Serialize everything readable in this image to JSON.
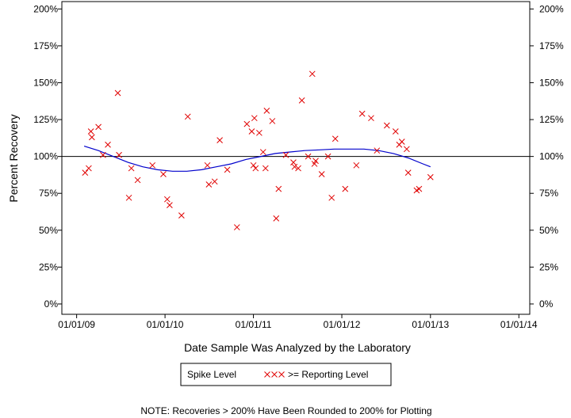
{
  "chart_data": {
    "type": "scatter",
    "xlabel": "Date Sample Was Analyzed by the Laboratory",
    "ylabel": "Percent Recovery",
    "x_ticks": [
      "01/01/09",
      "01/01/10",
      "01/01/11",
      "01/01/12",
      "01/01/13",
      "01/01/14"
    ],
    "y_ticks": [
      "0%",
      "25%",
      "50%",
      "75%",
      "100%",
      "125%",
      "150%",
      "175%",
      "200%"
    ],
    "xlim": [
      "2008-11-01",
      "2014-02-15"
    ],
    "ylim": [
      -7,
      205
    ],
    "reference_line": 100,
    "legend": {
      "label": "Spike Level",
      "marker_text": "xxx",
      "marker_label": ">= Reporting Level"
    },
    "note": "NOTE: Recoveries > 200% Have Been Rounded to 200% for Plotting",
    "colors": {
      "points": "#e00000",
      "trend": "#0000cc",
      "reference": "#000000"
    },
    "series": [
      {
        "name": ">= Reporting Level",
        "marker": "x",
        "points": [
          {
            "x": "2009-02-05",
            "y": 89
          },
          {
            "x": "2009-02-20",
            "y": 92
          },
          {
            "x": "2009-03-01",
            "y": 117
          },
          {
            "x": "2009-03-05",
            "y": 113
          },
          {
            "x": "2009-04-01",
            "y": 120
          },
          {
            "x": "2009-04-20",
            "y": 101
          },
          {
            "x": "2009-05-10",
            "y": 108
          },
          {
            "x": "2009-06-20",
            "y": 143
          },
          {
            "x": "2009-06-25",
            "y": 101
          },
          {
            "x": "2009-08-05",
            "y": 72
          },
          {
            "x": "2009-08-15",
            "y": 92
          },
          {
            "x": "2009-09-10",
            "y": 84
          },
          {
            "x": "2009-11-10",
            "y": 94
          },
          {
            "x": "2009-12-25",
            "y": 88
          },
          {
            "x": "2010-01-10",
            "y": 71
          },
          {
            "x": "2010-01-20",
            "y": 67
          },
          {
            "x": "2010-03-10",
            "y": 60
          },
          {
            "x": "2010-04-05",
            "y": 127
          },
          {
            "x": "2010-06-25",
            "y": 94
          },
          {
            "x": "2010-07-01",
            "y": 81
          },
          {
            "x": "2010-07-25",
            "y": 83
          },
          {
            "x": "2010-08-15",
            "y": 111
          },
          {
            "x": "2010-09-15",
            "y": 91
          },
          {
            "x": "2010-10-25",
            "y": 52
          },
          {
            "x": "2010-12-05",
            "y": 122
          },
          {
            "x": "2010-12-25",
            "y": 117
          },
          {
            "x": "2011-01-01",
            "y": 94
          },
          {
            "x": "2011-01-05",
            "y": 126
          },
          {
            "x": "2011-01-10",
            "y": 92
          },
          {
            "x": "2011-01-25",
            "y": 116
          },
          {
            "x": "2011-02-10",
            "y": 103
          },
          {
            "x": "2011-02-20",
            "y": 92
          },
          {
            "x": "2011-02-25",
            "y": 131
          },
          {
            "x": "2011-03-20",
            "y": 124
          },
          {
            "x": "2011-04-05",
            "y": 58
          },
          {
            "x": "2011-04-15",
            "y": 78
          },
          {
            "x": "2011-05-15",
            "y": 101
          },
          {
            "x": "2011-06-15",
            "y": 96
          },
          {
            "x": "2011-06-20",
            "y": 93
          },
          {
            "x": "2011-07-05",
            "y": 92
          },
          {
            "x": "2011-07-20",
            "y": 138
          },
          {
            "x": "2011-08-15",
            "y": 100
          },
          {
            "x": "2011-09-01",
            "y": 156
          },
          {
            "x": "2011-09-10",
            "y": 95
          },
          {
            "x": "2011-09-15",
            "y": 97
          },
          {
            "x": "2011-10-10",
            "y": 88
          },
          {
            "x": "2011-11-05",
            "y": 100
          },
          {
            "x": "2011-11-20",
            "y": 72
          },
          {
            "x": "2011-12-05",
            "y": 112
          },
          {
            "x": "2012-01-15",
            "y": 78
          },
          {
            "x": "2012-03-01",
            "y": 94
          },
          {
            "x": "2012-03-25",
            "y": 129
          },
          {
            "x": "2012-05-01",
            "y": 126
          },
          {
            "x": "2012-05-25",
            "y": 104
          },
          {
            "x": "2012-07-05",
            "y": 121
          },
          {
            "x": "2012-08-10",
            "y": 117
          },
          {
            "x": "2012-08-25",
            "y": 108
          },
          {
            "x": "2012-09-05",
            "y": 110
          },
          {
            "x": "2012-09-25",
            "y": 105
          },
          {
            "x": "2012-10-01",
            "y": 89
          },
          {
            "x": "2012-11-05",
            "y": 77
          },
          {
            "x": "2012-11-15",
            "y": 78
          },
          {
            "x": "2013-01-01",
            "y": 86
          }
        ]
      },
      {
        "name": "trend",
        "type": "line",
        "points": [
          {
            "x": "2009-02-01",
            "y": 107
          },
          {
            "x": "2009-04-01",
            "y": 104
          },
          {
            "x": "2009-06-01",
            "y": 100
          },
          {
            "x": "2009-08-01",
            "y": 96
          },
          {
            "x": "2009-10-01",
            "y": 93
          },
          {
            "x": "2009-12-01",
            "y": 91
          },
          {
            "x": "2010-02-01",
            "y": 90
          },
          {
            "x": "2010-04-01",
            "y": 90
          },
          {
            "x": "2010-06-01",
            "y": 91
          },
          {
            "x": "2010-08-01",
            "y": 93
          },
          {
            "x": "2010-10-01",
            "y": 95
          },
          {
            "x": "2010-12-01",
            "y": 98
          },
          {
            "x": "2011-02-01",
            "y": 100
          },
          {
            "x": "2011-04-01",
            "y": 102
          },
          {
            "x": "2011-06-01",
            "y": 103
          },
          {
            "x": "2011-08-01",
            "y": 104
          },
          {
            "x": "2011-10-01",
            "y": 104.5
          },
          {
            "x": "2011-12-01",
            "y": 105
          },
          {
            "x": "2012-02-01",
            "y": 105
          },
          {
            "x": "2012-04-01",
            "y": 105
          },
          {
            "x": "2012-06-01",
            "y": 104
          },
          {
            "x": "2012-08-01",
            "y": 102
          },
          {
            "x": "2012-10-01",
            "y": 99
          },
          {
            "x": "2012-12-01",
            "y": 95
          },
          {
            "x": "2013-01-01",
            "y": 93
          }
        ]
      }
    ]
  }
}
